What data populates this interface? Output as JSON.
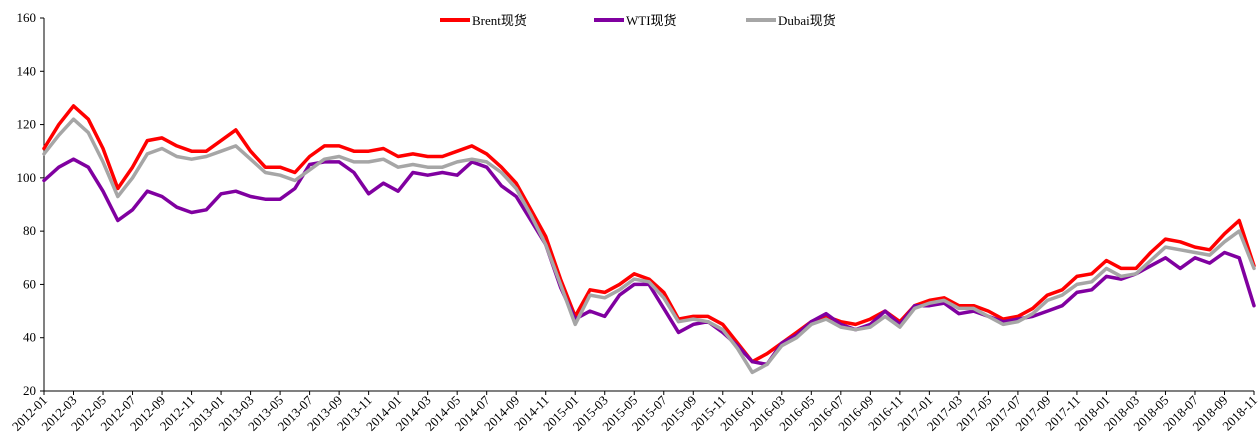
{
  "chart_data": {
    "type": "line",
    "title": "",
    "xlabel": "",
    "ylabel": "",
    "ylim": [
      20,
      160
    ],
    "yticks": [
      20,
      40,
      60,
      80,
      100,
      120,
      140,
      160
    ],
    "x_tick_labels": [
      "2012-01",
      "2012-03",
      "2012-05",
      "2012-07",
      "2012-09",
      "2012-11",
      "2013-01",
      "2013-03",
      "2013-05",
      "2013-07",
      "2013-09",
      "2013-11",
      "2014-01",
      "2014-03",
      "2014-05",
      "2014-07",
      "2014-09",
      "2014-11",
      "2015-01",
      "2015-03",
      "2015-05",
      "2015-07",
      "2015-09",
      "2015-11",
      "2016-01",
      "2016-03",
      "2016-05",
      "2016-07",
      "2016-09",
      "2016-11",
      "2017-01",
      "2017-03",
      "2017-05",
      "2017-07",
      "2017-09",
      "2017-11",
      "2018-01",
      "2018-03",
      "2018-05",
      "2018-07",
      "2018-09",
      "2018-11"
    ],
    "grid": false,
    "legend_position": "top-center",
    "x": [
      "2012-01",
      "2012-02",
      "2012-03",
      "2012-04",
      "2012-05",
      "2012-06",
      "2012-07",
      "2012-08",
      "2012-09",
      "2012-10",
      "2012-11",
      "2012-12",
      "2013-01",
      "2013-02",
      "2013-03",
      "2013-04",
      "2013-05",
      "2013-06",
      "2013-07",
      "2013-08",
      "2013-09",
      "2013-10",
      "2013-11",
      "2013-12",
      "2014-01",
      "2014-02",
      "2014-03",
      "2014-04",
      "2014-05",
      "2014-06",
      "2014-07",
      "2014-08",
      "2014-09",
      "2014-10",
      "2014-11",
      "2014-12",
      "2015-01",
      "2015-02",
      "2015-03",
      "2015-04",
      "2015-05",
      "2015-06",
      "2015-07",
      "2015-08",
      "2015-09",
      "2015-10",
      "2015-11",
      "2015-12",
      "2016-01",
      "2016-02",
      "2016-03",
      "2016-04",
      "2016-05",
      "2016-06",
      "2016-07",
      "2016-08",
      "2016-09",
      "2016-10",
      "2016-11",
      "2016-12",
      "2017-01",
      "2017-02",
      "2017-03",
      "2017-04",
      "2017-05",
      "2017-06",
      "2017-07",
      "2017-08",
      "2017-09",
      "2017-10",
      "2017-11",
      "2017-12",
      "2018-01",
      "2018-02",
      "2018-03",
      "2018-04",
      "2018-05",
      "2018-06",
      "2018-07",
      "2018-08",
      "2018-09",
      "2018-10",
      "2018-11"
    ],
    "series": [
      {
        "name": "Brent现货",
        "color": "#ff0000",
        "values": [
          111,
          120,
          127,
          122,
          111,
          96,
          104,
          114,
          115,
          112,
          110,
          110,
          114,
          118,
          110,
          104,
          104,
          102,
          108,
          112,
          112,
          110,
          110,
          111,
          108,
          109,
          108,
          108,
          110,
          112,
          109,
          104,
          98,
          88,
          78,
          62,
          48,
          58,
          57,
          60,
          64,
          62,
          57,
          47,
          48,
          48,
          45,
          38,
          31,
          34,
          38,
          42,
          46,
          48,
          46,
          45,
          47,
          50,
          46,
          52,
          54,
          55,
          52,
          52,
          50,
          47,
          48,
          51,
          56,
          58,
          63,
          64,
          69,
          66,
          66,
          72,
          77,
          76,
          74,
          73,
          79,
          84,
          67
        ]
      },
      {
        "name": "WTI现货",
        "color": "#8000a0",
        "values": [
          99,
          104,
          107,
          104,
          95,
          84,
          88,
          95,
          93,
          89,
          87,
          88,
          94,
          95,
          93,
          92,
          92,
          96,
          105,
          106,
          106,
          102,
          94,
          98,
          95,
          102,
          101,
          102,
          101,
          106,
          104,
          97,
          93,
          84,
          75,
          59,
          47,
          50,
          48,
          56,
          60,
          60,
          51,
          42,
          45,
          46,
          42,
          37,
          31,
          30,
          38,
          41,
          46,
          49,
          45,
          43,
          45,
          50,
          45,
          52,
          52,
          53,
          49,
          50,
          48,
          46,
          47,
          48,
          50,
          52,
          57,
          58,
          63,
          62,
          64,
          67,
          70,
          66,
          70,
          68,
          72,
          70,
          52
        ]
      },
      {
        "name": "Dubai现货",
        "color": "#a6a6a6",
        "values": [
          109,
          116,
          122,
          117,
          106,
          93,
          100,
          109,
          111,
          108,
          107,
          108,
          110,
          112,
          107,
          102,
          101,
          99,
          103,
          107,
          108,
          106,
          106,
          107,
          104,
          105,
          104,
          104,
          106,
          107,
          106,
          102,
          96,
          86,
          75,
          60,
          45,
          56,
          55,
          58,
          62,
          61,
          55,
          46,
          47,
          46,
          43,
          36,
          27,
          30,
          37,
          40,
          45,
          47,
          44,
          43,
          44,
          48,
          44,
          51,
          53,
          54,
          51,
          51,
          48,
          45,
          46,
          49,
          54,
          56,
          60,
          61,
          66,
          63,
          64,
          69,
          74,
          73,
          72,
          71,
          76,
          80,
          66
        ]
      }
    ]
  }
}
